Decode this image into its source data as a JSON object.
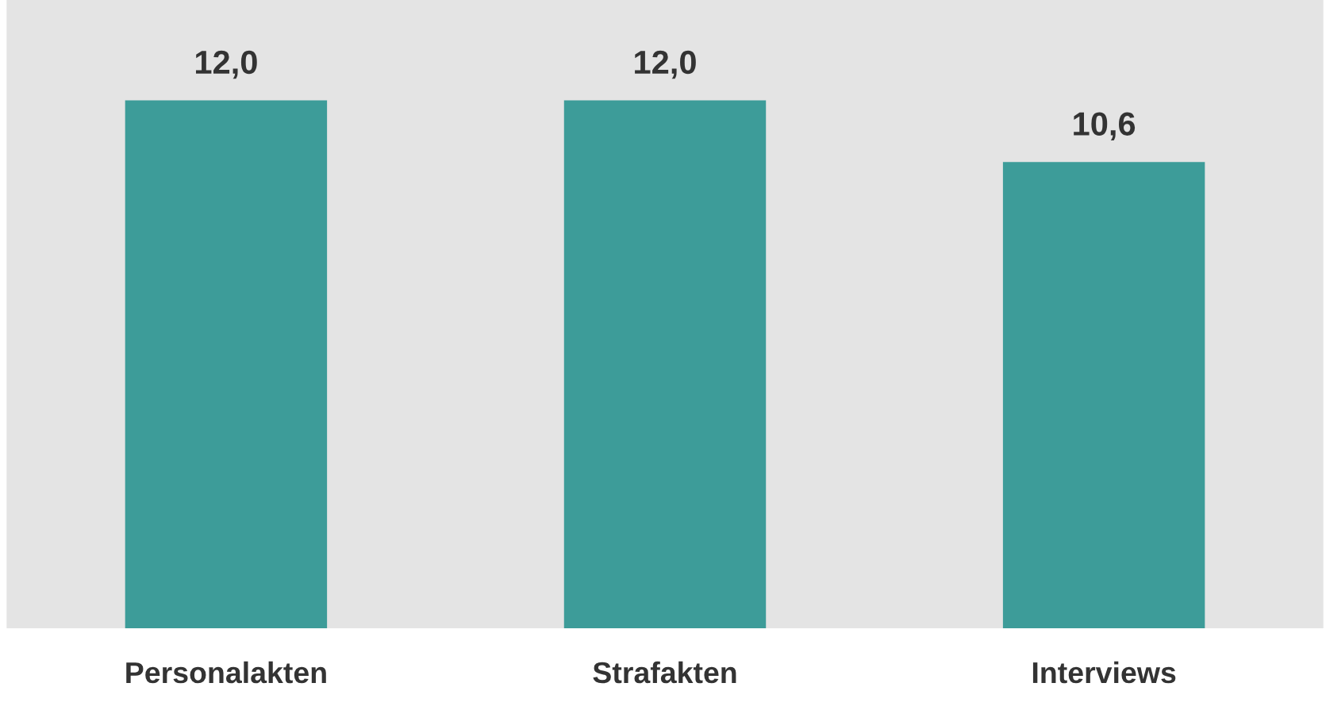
{
  "chart_data": {
    "type": "bar",
    "categories": [
      "Personalakten",
      "Strafakten",
      "Interviews"
    ],
    "values": [
      12.0,
      12.0,
      10.6
    ],
    "color": "#3d9c99",
    "value_labels": [
      "12,0",
      "12,0",
      "10,6"
    ]
  }
}
